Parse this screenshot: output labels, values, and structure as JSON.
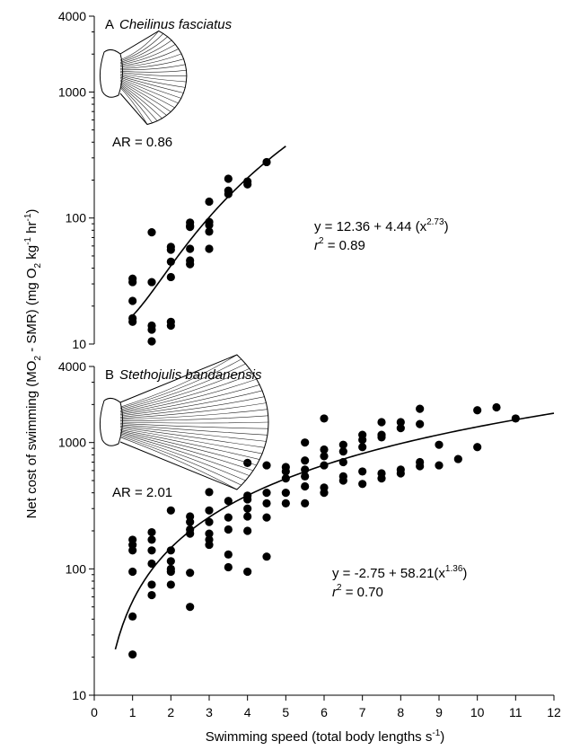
{
  "figure": {
    "ylabel_parts": [
      "Net cost of swimming (MO",
      "2",
      " - SMR) (mg O",
      "2",
      " kg",
      "-1",
      " hr",
      "-1",
      ")"
    ],
    "xlabel_parts": [
      "Swimming speed (total body lengths s",
      "-1",
      ")"
    ]
  },
  "chart_data": [
    {
      "type": "scatter",
      "panel_letter": "A",
      "title": "Cheilinus fasciatus",
      "y_scale": "log",
      "ylim": [
        10,
        4000
      ],
      "y_ticks": [
        10,
        100,
        1000,
        4000
      ],
      "y_tick_labels": [
        "10",
        "100",
        "1000",
        "4000"
      ],
      "x_axis_visible": false,
      "aspect_ratio_label": "AR = 0.86",
      "equation_parts": [
        "y = 12.36 + 4.44 (x",
        "2.73",
        ")"
      ],
      "r2_parts": [
        "r",
        "2",
        " = 0.89"
      ],
      "fit": {
        "intercept": 12.36,
        "coef": 4.44,
        "exponent": 2.73,
        "x_from": 1.0,
        "x_to": 5.0
      },
      "points": [
        [
          1.0,
          33
        ],
        [
          1.0,
          31
        ],
        [
          1.0,
          22
        ],
        [
          1.0,
          16
        ],
        [
          1.0,
          15
        ],
        [
          1.5,
          77
        ],
        [
          1.5,
          31
        ],
        [
          1.5,
          14
        ],
        [
          1.5,
          13
        ],
        [
          1.5,
          10.5
        ],
        [
          2.0,
          59
        ],
        [
          2.0,
          56
        ],
        [
          2.0,
          45
        ],
        [
          2.0,
          34
        ],
        [
          2.0,
          15
        ],
        [
          2.0,
          14
        ],
        [
          2.5,
          92
        ],
        [
          2.5,
          87
        ],
        [
          2.5,
          85
        ],
        [
          2.5,
          57
        ],
        [
          2.5,
          46
        ],
        [
          2.5,
          43
        ],
        [
          3.0,
          135
        ],
        [
          3.0,
          93
        ],
        [
          3.0,
          88
        ],
        [
          3.0,
          78
        ],
        [
          3.0,
          57
        ],
        [
          3.5,
          205
        ],
        [
          3.5,
          165
        ],
        [
          3.5,
          155
        ],
        [
          4.0,
          195
        ],
        [
          4.0,
          185
        ],
        [
          4.5,
          278
        ]
      ]
    },
    {
      "type": "scatter",
      "panel_letter": "B",
      "title": "Stethojulis bandanensis",
      "y_scale": "log",
      "ylim": [
        10,
        4000
      ],
      "y_ticks": [
        10,
        100,
        1000,
        4000
      ],
      "y_tick_labels": [
        "10",
        "100",
        "1000",
        "4000"
      ],
      "xlim": [
        0,
        12
      ],
      "x_ticks": [
        0,
        1,
        2,
        3,
        4,
        5,
        6,
        7,
        8,
        9,
        10,
        11,
        12
      ],
      "x_tick_labels": [
        "0",
        "1",
        "2",
        "3",
        "4",
        "5",
        "6",
        "7",
        "8",
        "9",
        "10",
        "11",
        "12"
      ],
      "aspect_ratio_label": "AR = 2.01",
      "equation_parts": [
        "y = -2.75 + 58.21(x",
        "1.36",
        ")"
      ],
      "r2_parts": [
        "r",
        "2",
        " = 0.70"
      ],
      "fit": {
        "intercept": -2.75,
        "coef": 58.21,
        "exponent": 1.36,
        "x_from": 0.55,
        "x_to": 12.0
      },
      "points": [
        [
          1.0,
          170
        ],
        [
          1.0,
          155
        ],
        [
          1.0,
          140
        ],
        [
          1.0,
          95
        ],
        [
          1.0,
          42
        ],
        [
          1.0,
          21
        ],
        [
          1.5,
          195
        ],
        [
          1.5,
          170
        ],
        [
          1.5,
          140
        ],
        [
          1.5,
          110
        ],
        [
          1.5,
          75
        ],
        [
          1.5,
          62
        ],
        [
          2.0,
          290
        ],
        [
          2.0,
          140
        ],
        [
          2.0,
          115
        ],
        [
          2.0,
          100
        ],
        [
          2.0,
          95
        ],
        [
          2.0,
          75
        ],
        [
          2.5,
          260
        ],
        [
          2.5,
          235
        ],
        [
          2.5,
          205
        ],
        [
          2.5,
          190
        ],
        [
          2.5,
          93
        ],
        [
          2.5,
          50
        ],
        [
          3.0,
          405
        ],
        [
          3.0,
          290
        ],
        [
          3.0,
          235
        ],
        [
          3.0,
          190
        ],
        [
          3.0,
          170
        ],
        [
          3.0,
          155
        ],
        [
          3.5,
          345
        ],
        [
          3.5,
          255
        ],
        [
          3.5,
          205
        ],
        [
          3.5,
          130
        ],
        [
          3.5,
          103
        ],
        [
          4.0,
          690
        ],
        [
          4.0,
          380
        ],
        [
          4.0,
          355
        ],
        [
          4.0,
          300
        ],
        [
          4.0,
          260
        ],
        [
          4.0,
          200
        ],
        [
          4.0,
          95
        ],
        [
          4.5,
          660
        ],
        [
          4.5,
          400
        ],
        [
          4.5,
          330
        ],
        [
          4.5,
          255
        ],
        [
          4.5,
          125
        ],
        [
          5.0,
          640
        ],
        [
          5.0,
          590
        ],
        [
          5.0,
          520
        ],
        [
          5.0,
          400
        ],
        [
          5.0,
          330
        ],
        [
          5.5,
          1000
        ],
        [
          5.5,
          720
        ],
        [
          5.5,
          610
        ],
        [
          5.5,
          540
        ],
        [
          5.5,
          450
        ],
        [
          5.5,
          330
        ],
        [
          6.0,
          1550
        ],
        [
          6.0,
          880
        ],
        [
          6.0,
          780
        ],
        [
          6.0,
          660
        ],
        [
          6.0,
          440
        ],
        [
          6.0,
          400
        ],
        [
          6.5,
          960
        ],
        [
          6.5,
          850
        ],
        [
          6.5,
          700
        ],
        [
          6.5,
          540
        ],
        [
          6.5,
          500
        ],
        [
          7.0,
          1150
        ],
        [
          7.0,
          1050
        ],
        [
          7.0,
          920
        ],
        [
          7.0,
          590
        ],
        [
          7.0,
          470
        ],
        [
          7.5,
          1450
        ],
        [
          7.5,
          1150
        ],
        [
          7.5,
          1100
        ],
        [
          7.5,
          570
        ],
        [
          7.5,
          520
        ],
        [
          8.0,
          1450
        ],
        [
          8.0,
          1300
        ],
        [
          8.0,
          610
        ],
        [
          8.0,
          570
        ],
        [
          8.5,
          1850
        ],
        [
          8.5,
          1400
        ],
        [
          8.5,
          700
        ],
        [
          8.5,
          650
        ],
        [
          9.0,
          960
        ],
        [
          9.0,
          660
        ],
        [
          9.5,
          740
        ],
        [
          10.0,
          1800
        ],
        [
          10.0,
          920
        ],
        [
          10.5,
          1900
        ],
        [
          11.0,
          1550
        ]
      ]
    }
  ]
}
